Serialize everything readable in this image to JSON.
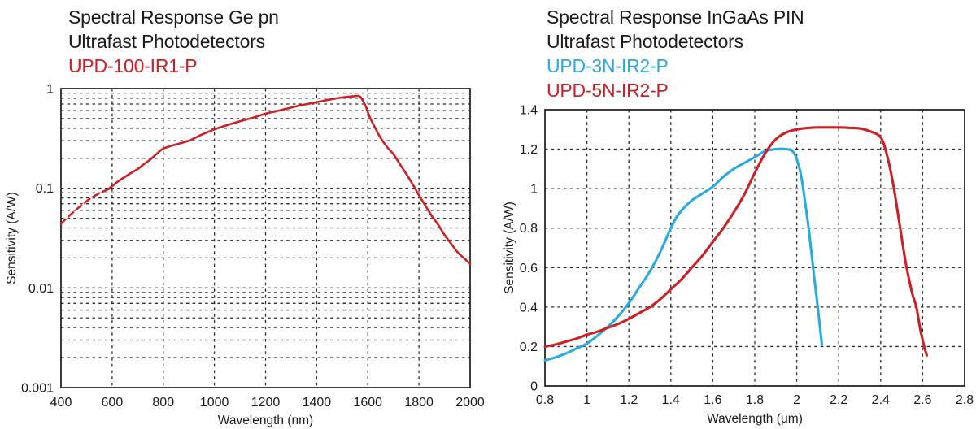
{
  "colors": {
    "red": "#cc2027",
    "cyan": "#29abe2",
    "text": "#1c1a1b",
    "grid": "#2a2a2a",
    "axis_border": "#1c1a1b"
  },
  "titles": {
    "left": {
      "line1": "Spectral Response Ge pn",
      "line2": "Ultrafast Photodetectors",
      "model1": "UPD-100-IR1-P"
    },
    "right": {
      "line1": "Spectral Response InGaAs PIN",
      "line2": "Ultrafast Photodetectors",
      "model1": "UPD-3N-IR2-P",
      "model2": "UPD-5N-IR2-P"
    }
  },
  "chart_data": [
    {
      "type": "line",
      "title": "Spectral Response Ge pn Ultrafast Photodetectors",
      "xlabel": "Wavelength (nm)",
      "ylabel": "Sensitivity (A/W)",
      "x_scale": "linear",
      "y_scale": "log",
      "xlim": [
        400,
        2000
      ],
      "ylim": [
        0.001,
        1
      ],
      "grid": "dashed",
      "legend_position": "none",
      "x_ticks": [
        400,
        600,
        800,
        1000,
        1200,
        1400,
        1600,
        1800,
        2000
      ],
      "x_tick_labels": [
        "400",
        "600",
        "800",
        "1000",
        "1200",
        "1400",
        "1600",
        "1800",
        "2000"
      ],
      "y_ticks": [
        1,
        0.1,
        0.01,
        0.001
      ],
      "y_tick_labels": [
        "1",
        "0.1",
        "0.01",
        "0.001"
      ],
      "series": [
        {
          "name": "UPD-100-IR1-P",
          "color": "#cc2027",
          "segments": [
            {
              "dashed": true,
              "points": [
                [
                  400,
                  0.044
                ],
                [
                  425,
                  0.051
                ],
                [
                  450,
                  0.058
                ],
                [
                  475,
                  0.066
                ],
                [
                  500,
                  0.074
                ],
                [
                  525,
                  0.082
                ],
                [
                  550,
                  0.089
                ],
                [
                  570,
                  0.094
                ],
                [
                  585,
                  0.098
                ]
              ]
            },
            {
              "dashed": false,
              "points": [
                [
                  585,
                  0.098
                ],
                [
                  600,
                  0.105
                ],
                [
                  625,
                  0.118
                ],
                [
                  650,
                  0.13
                ],
                [
                  675,
                  0.143
                ],
                [
                  700,
                  0.156
                ],
                [
                  725,
                  0.175
                ],
                [
                  750,
                  0.195
                ],
                [
                  775,
                  0.222
                ],
                [
                  800,
                  0.25
                ],
                [
                  850,
                  0.275
                ],
                [
                  900,
                  0.3
                ],
                [
                  950,
                  0.345
                ],
                [
                  1000,
                  0.39
                ],
                [
                  1050,
                  0.43
                ],
                [
                  1100,
                  0.47
                ],
                [
                  1150,
                  0.51
                ],
                [
                  1200,
                  0.56
                ],
                [
                  1250,
                  0.6
                ],
                [
                  1300,
                  0.645
                ],
                [
                  1350,
                  0.69
                ],
                [
                  1400,
                  0.73
                ],
                [
                  1450,
                  0.775
                ],
                [
                  1500,
                  0.815
                ],
                [
                  1530,
                  0.832
                ],
                [
                  1550,
                  0.84
                ],
                [
                  1565,
                  0.842
                ],
                [
                  1575,
                  0.8
                ],
                [
                  1590,
                  0.68
                ],
                [
                  1600,
                  0.58
                ],
                [
                  1610,
                  0.5
                ],
                [
                  1625,
                  0.42
                ],
                [
                  1650,
                  0.32
                ],
                [
                  1675,
                  0.26
                ],
                [
                  1700,
                  0.22
                ],
                [
                  1725,
                  0.175
                ],
                [
                  1750,
                  0.14
                ],
                [
                  1775,
                  0.11
                ],
                [
                  1800,
                  0.085
                ],
                [
                  1825,
                  0.067
                ],
                [
                  1850,
                  0.053
                ],
                [
                  1875,
                  0.043
                ],
                [
                  1900,
                  0.034
                ],
                [
                  1925,
                  0.028
                ],
                [
                  1950,
                  0.023
                ],
                [
                  1975,
                  0.02
                ],
                [
                  2000,
                  0.0175
                ]
              ]
            }
          ]
        }
      ]
    },
    {
      "type": "line",
      "title": "Spectral Response InGaAs PIN Ultrafast Photodetectors",
      "xlabel": "Wavelength (μm)",
      "ylabel": "Sensitivity (A/W)",
      "x_scale": "linear",
      "y_scale": "linear",
      "xlim": [
        0.8,
        2.8
      ],
      "ylim": [
        0,
        1.4
      ],
      "grid": "dashed",
      "legend_position": "none",
      "x_ticks": [
        0.8,
        1,
        1.2,
        1.4,
        1.6,
        1.8,
        2,
        2.2,
        2.4,
        2.6,
        2.8
      ],
      "x_tick_labels": [
        "0.8",
        "1",
        "1.2",
        "1.4",
        "1.6",
        "1.8",
        "2",
        "2.2",
        "2.4",
        "2.6",
        "2.8"
      ],
      "y_ticks": [
        0,
        0.2,
        0.4,
        0.6,
        0.8,
        1,
        1.2,
        1.4
      ],
      "y_tick_labels": [
        "0",
        "0.2",
        "0.4",
        "0.6",
        "0.8",
        "1",
        "1.2",
        "1.4"
      ],
      "series": [
        {
          "name": "UPD-3N-IR2-P",
          "color": "#29abe2",
          "segments": [
            {
              "dashed": false,
              "points": [
                [
                  0.8,
                  0.13
                ],
                [
                  0.85,
                  0.145
                ],
                [
                  0.9,
                  0.165
                ],
                [
                  0.95,
                  0.19
                ],
                [
                  1.0,
                  0.215
                ],
                [
                  1.05,
                  0.255
                ],
                [
                  1.1,
                  0.3
                ],
                [
                  1.15,
                  0.355
                ],
                [
                  1.2,
                  0.42
                ],
                [
                  1.25,
                  0.5
                ],
                [
                  1.3,
                  0.58
                ],
                [
                  1.35,
                  0.68
                ],
                [
                  1.4,
                  0.8
                ],
                [
                  1.43,
                  0.86
                ],
                [
                  1.46,
                  0.9
                ],
                [
                  1.5,
                  0.94
                ],
                [
                  1.55,
                  0.975
                ],
                [
                  1.6,
                  1.01
                ],
                [
                  1.65,
                  1.06
                ],
                [
                  1.7,
                  1.1
                ],
                [
                  1.75,
                  1.13
                ],
                [
                  1.8,
                  1.16
                ],
                [
                  1.85,
                  1.19
                ],
                [
                  1.9,
                  1.2
                ],
                [
                  1.95,
                  1.2
                ],
                [
                  1.98,
                  1.19
                ],
                [
                  2.0,
                  1.15
                ],
                [
                  2.02,
                  1.07
                ],
                [
                  2.04,
                  0.93
                ],
                [
                  2.06,
                  0.77
                ],
                [
                  2.08,
                  0.58
                ],
                [
                  2.1,
                  0.4
                ],
                [
                  2.12,
                  0.21
                ]
              ]
            }
          ]
        },
        {
          "name": "UPD-5N-IR2-P",
          "color": "#cc2027",
          "segments": [
            {
              "dashed": false,
              "points": [
                [
                  0.8,
                  0.2
                ],
                [
                  0.85,
                  0.21
                ],
                [
                  0.9,
                  0.225
                ],
                [
                  0.95,
                  0.24
                ],
                [
                  1.0,
                  0.26
                ],
                [
                  1.05,
                  0.275
                ],
                [
                  1.1,
                  0.295
                ],
                [
                  1.15,
                  0.315
                ],
                [
                  1.2,
                  0.34
                ],
                [
                  1.25,
                  0.37
                ],
                [
                  1.3,
                  0.4
                ],
                [
                  1.35,
                  0.44
                ],
                [
                  1.4,
                  0.49
                ],
                [
                  1.45,
                  0.54
                ],
                [
                  1.5,
                  0.6
                ],
                [
                  1.55,
                  0.66
                ],
                [
                  1.6,
                  0.73
                ],
                [
                  1.65,
                  0.8
                ],
                [
                  1.7,
                  0.88
                ],
                [
                  1.75,
                  0.97
                ],
                [
                  1.8,
                  1.08
                ],
                [
                  1.85,
                  1.18
                ],
                [
                  1.9,
                  1.25
                ],
                [
                  1.95,
                  1.285
                ],
                [
                  2.0,
                  1.3
                ],
                [
                  2.05,
                  1.307
                ],
                [
                  2.1,
                  1.31
                ],
                [
                  2.15,
                  1.31
                ],
                [
                  2.2,
                  1.31
                ],
                [
                  2.25,
                  1.308
                ],
                [
                  2.3,
                  1.305
                ],
                [
                  2.35,
                  1.29
                ],
                [
                  2.4,
                  1.26
                ],
                [
                  2.43,
                  1.17
                ],
                [
                  2.46,
                  1.02
                ],
                [
                  2.49,
                  0.82
                ],
                [
                  2.52,
                  0.62
                ],
                [
                  2.55,
                  0.47
                ],
                [
                  2.57,
                  0.4
                ],
                [
                  2.59,
                  0.28
                ],
                [
                  2.61,
                  0.19
                ],
                [
                  2.62,
                  0.155
                ]
              ]
            }
          ]
        }
      ]
    }
  ]
}
